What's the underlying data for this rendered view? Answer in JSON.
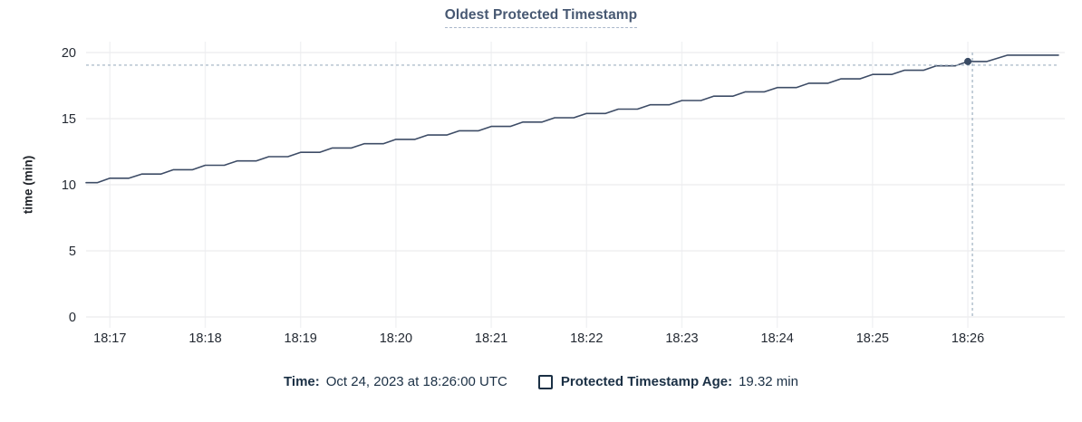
{
  "title": "Oldest Protected Timestamp",
  "y_axis": {
    "label": "time (min)",
    "ticks": [
      0,
      5,
      10,
      15,
      20
    ]
  },
  "x_axis": {
    "ticks": [
      {
        "label": "18:17",
        "t": 15
      },
      {
        "label": "18:18",
        "t": 75
      },
      {
        "label": "18:19",
        "t": 135
      },
      {
        "label": "18:20",
        "t": 195
      },
      {
        "label": "18:21",
        "t": 255
      },
      {
        "label": "18:22",
        "t": 315
      },
      {
        "label": "18:23",
        "t": 375
      },
      {
        "label": "18:24",
        "t": 435
      },
      {
        "label": "18:25",
        "t": 495
      },
      {
        "label": "18:26",
        "t": 555
      }
    ]
  },
  "hover": {
    "time_label": "Time:",
    "time_value": "Oct 24, 2023 at 18:26:00 UTC",
    "series_label": "Protected Timestamp Age:",
    "series_value": "19.32 min",
    "point": {
      "t": 555,
      "value": 19.32
    }
  },
  "chart_data": {
    "type": "line",
    "title": "Oldest Protected Timestamp",
    "xlabel": "",
    "ylabel": "time (min)",
    "ylim": [
      0,
      20
    ],
    "grid": true,
    "legend_position": "bottom",
    "x_unit": "seconds after 18:16:45 UTC (minute ticks 18:17–18:26)",
    "x_tick_labels": [
      "18:17",
      "18:18",
      "18:19",
      "18:20",
      "18:21",
      "18:22",
      "18:23",
      "18:24",
      "18:25",
      "18:26"
    ],
    "series": [
      {
        "name": "Protected Timestamp Age",
        "points": [
          [
            0,
            10.16
          ],
          [
            7,
            10.16
          ],
          [
            15,
            10.49
          ],
          [
            27,
            10.49
          ],
          [
            35,
            10.81
          ],
          [
            47,
            10.81
          ],
          [
            55,
            11.14
          ],
          [
            67,
            11.14
          ],
          [
            75,
            11.47
          ],
          [
            87,
            11.47
          ],
          [
            95,
            11.8
          ],
          [
            107,
            11.8
          ],
          [
            115,
            12.12
          ],
          [
            127,
            12.12
          ],
          [
            135,
            12.45
          ],
          [
            147,
            12.45
          ],
          [
            155,
            12.78
          ],
          [
            167,
            12.78
          ],
          [
            175,
            13.1
          ],
          [
            187,
            13.1
          ],
          [
            195,
            13.43
          ],
          [
            207,
            13.43
          ],
          [
            215,
            13.76
          ],
          [
            227,
            13.76
          ],
          [
            235,
            14.08
          ],
          [
            247,
            14.08
          ],
          [
            255,
            14.41
          ],
          [
            267,
            14.41
          ],
          [
            275,
            14.74
          ],
          [
            287,
            14.74
          ],
          [
            295,
            15.07
          ],
          [
            307,
            15.07
          ],
          [
            315,
            15.39
          ],
          [
            327,
            15.39
          ],
          [
            335,
            15.72
          ],
          [
            347,
            15.72
          ],
          [
            355,
            16.05
          ],
          [
            367,
            16.05
          ],
          [
            375,
            16.37
          ],
          [
            387,
            16.37
          ],
          [
            395,
            16.7
          ],
          [
            407,
            16.7
          ],
          [
            415,
            17.03
          ],
          [
            427,
            17.03
          ],
          [
            435,
            17.35
          ],
          [
            447,
            17.35
          ],
          [
            455,
            17.68
          ],
          [
            467,
            17.68
          ],
          [
            475,
            18.01
          ],
          [
            487,
            18.01
          ],
          [
            495,
            18.34
          ],
          [
            507,
            18.34
          ],
          [
            515,
            18.66
          ],
          [
            527,
            18.66
          ],
          [
            535,
            18.99
          ],
          [
            547,
            18.99
          ],
          [
            555,
            19.32
          ],
          [
            567,
            19.32
          ],
          [
            580,
            19.8
          ],
          [
            612,
            19.8
          ]
        ]
      }
    ]
  },
  "colors": {
    "title_text": "#475872",
    "title_underline": "#a9b7cb",
    "line": "#3d4c66",
    "hover_dot": "#394a63",
    "crosshair": "#9fb1c1",
    "grid_horizontal": "#ececee",
    "grid_vertical": "#f1f2f4",
    "tick_text": "#242a33",
    "legend_text": "#1b3045"
  }
}
